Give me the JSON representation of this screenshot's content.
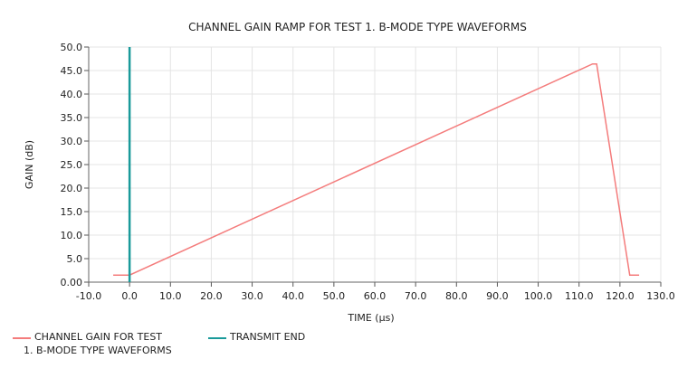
{
  "chart_data": {
    "type": "line",
    "title": "CHANNEL GAIN RAMP FOR TEST 1. B-MODE TYPE WAVEFORMS",
    "xlabel": "TIME (µs)",
    "ylabel": "GAIN (dB)",
    "xlim": [
      -10,
      130
    ],
    "ylim": [
      0,
      50
    ],
    "xticks": [
      "-10.0",
      "0.0",
      "10.0",
      "20.0",
      "30.0",
      "40.0",
      "50.0",
      "60.0",
      "70.0",
      "80.0",
      "90.0",
      "100.0",
      "110.0",
      "120.0",
      "130.0"
    ],
    "yticks": [
      "0.00",
      "5.0",
      "10.0",
      "15.0",
      "20.0",
      "25.0",
      "30.0",
      "35.0",
      "40.0",
      "45.0",
      "50.0"
    ],
    "grid": true,
    "legend_position": "bottom-left",
    "series": [
      {
        "name": "CHANNEL GAIN FOR TEST 1. B-MODE TYPE WAVEFORMS",
        "color": "#f47c7c",
        "x": [
          -4,
          0,
          113.3,
          114.3,
          122.4,
          124.7
        ],
        "y": [
          1.5,
          1.5,
          46.4,
          46.4,
          1.5,
          1.5
        ]
      },
      {
        "name": "TRANSMIT END",
        "color": "#1a9a9a",
        "type": "vertical-line",
        "x": 0
      }
    ]
  },
  "legend": {
    "gain_line1": "CHANNEL GAIN FOR TEST",
    "gain_line2": "1. B-MODE TYPE WAVEFORMS",
    "transmit": "TRANSMIT END"
  }
}
